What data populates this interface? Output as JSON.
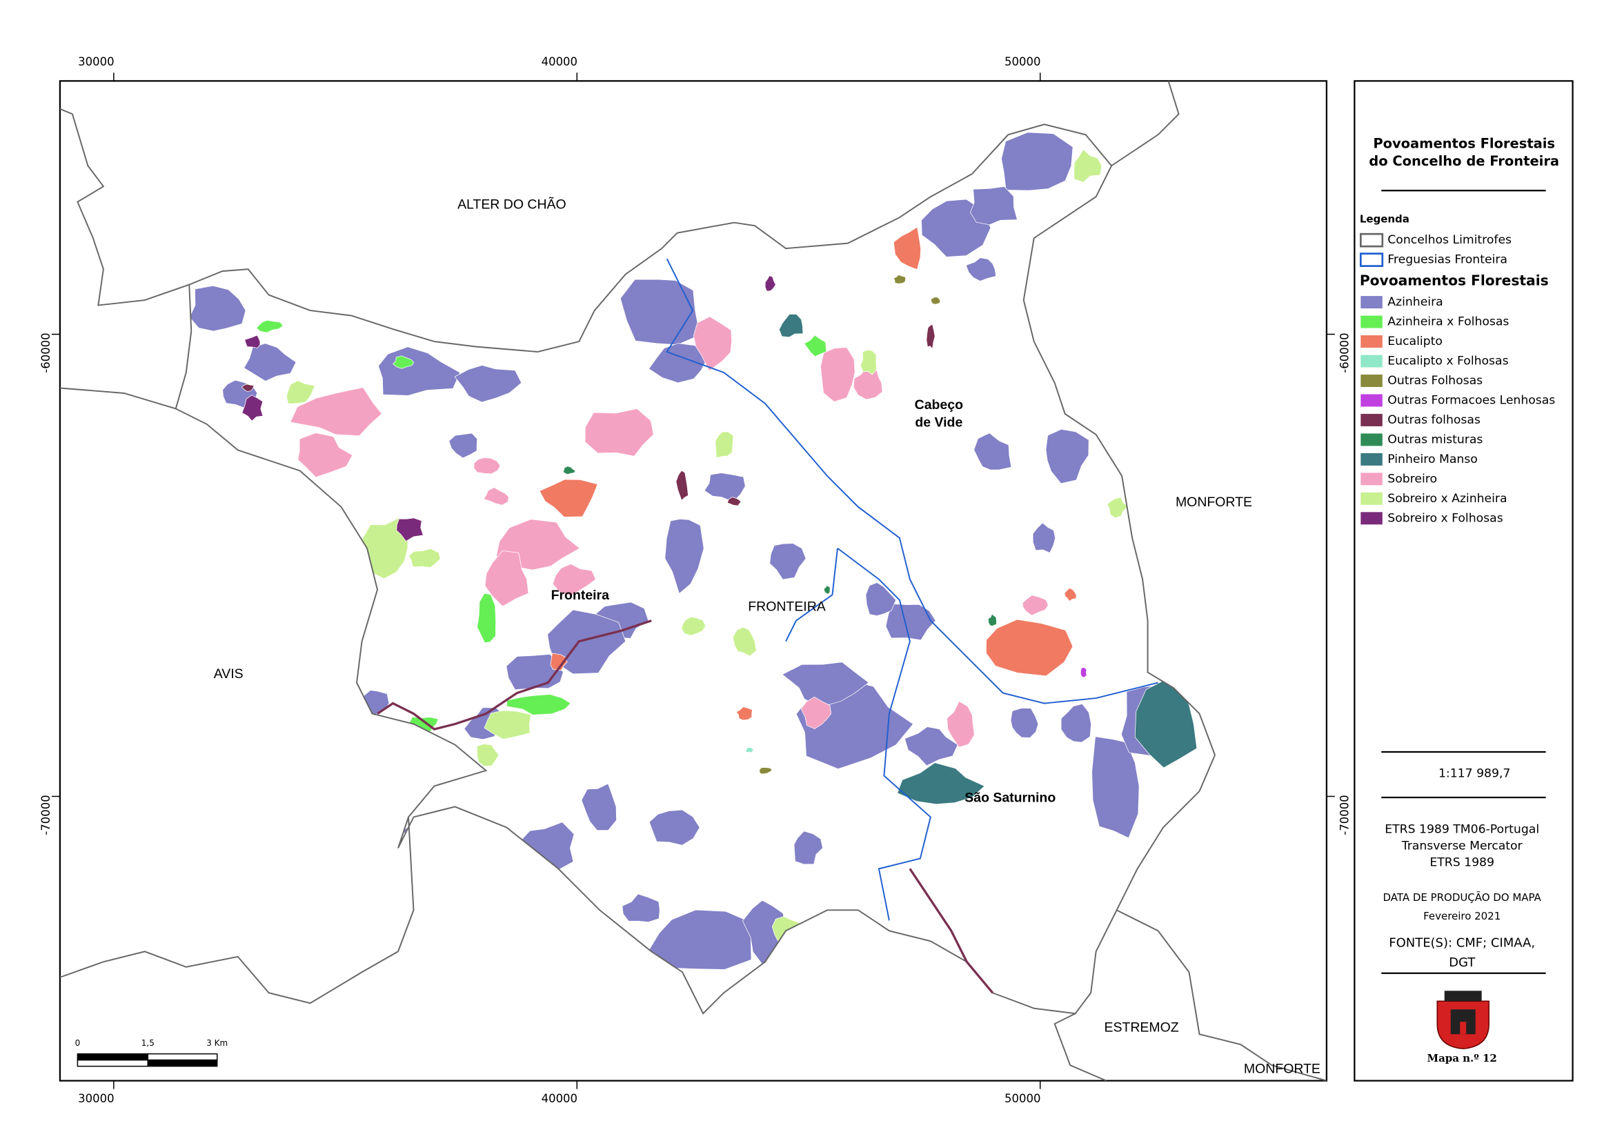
{
  "title": [
    "Povoamentos Florestais",
    "do Concelho de Fronteira"
  ],
  "map": {
    "x_ticks": [
      "30000",
      "40000",
      "50000"
    ],
    "y_ticks": [
      "-60000",
      "-70000"
    ],
    "places": [
      "ALTER DO CHÃO",
      "MONFORTE",
      "AVIS",
      "ESTREMOZ",
      "MONFORTE",
      "FRONTEIRA",
      "Fronteira",
      "Cabeço",
      "de Vide",
      "São Saturnino"
    ],
    "scale_bar": [
      "0",
      "1,5",
      "3 Km"
    ]
  },
  "legend": {
    "heading": "Legenda",
    "boundaries": [
      {
        "label": "Concelhos Limitrofes",
        "color": "#666666"
      },
      {
        "label": "Freguesias Fronteira",
        "color": "#1f5fd0"
      }
    ],
    "section": "Povoamentos Florestais",
    "classes": [
      {
        "label": "Azinheira",
        "color": "#8280c6"
      },
      {
        "label": "Azinheira x Folhosas",
        "color": "#66ee55"
      },
      {
        "label": "Eucalipto",
        "color": "#f07a62"
      },
      {
        "label": "Eucalipto x Folhosas",
        "color": "#90e8c8"
      },
      {
        "label": "Outras Folhosas",
        "color": "#8a8a3c"
      },
      {
        "label": "Outras Formacoes Lenhosas",
        "color": "#c040e0"
      },
      {
        "label": "Outras folhosas",
        "color": "#7a3050"
      },
      {
        "label": "Outras misturas",
        "color": "#2e8b57"
      },
      {
        "label": "Pinheiro Manso",
        "color": "#3a7a80"
      },
      {
        "label": "Sobreiro",
        "color": "#f4a2c2"
      },
      {
        "label": "Sobreiro x Azinheira",
        "color": "#c8f090"
      },
      {
        "label": "Sobreiro x Folhosas",
        "color": "#7a2a7a"
      }
    ]
  },
  "scale": "1:117 989,7",
  "projection": [
    "ETRS 1989 TM06-Portugal",
    "Transverse Mercator",
    "ETRS 1989"
  ],
  "date": [
    "DATA DE PRODUÇÃO DO MAPA",
    "Fevereiro 2021"
  ],
  "sources": [
    "FONTE(S): CMF; CIMAA,",
    "DGT"
  ],
  "map_number": "Mapa n.º 12"
}
